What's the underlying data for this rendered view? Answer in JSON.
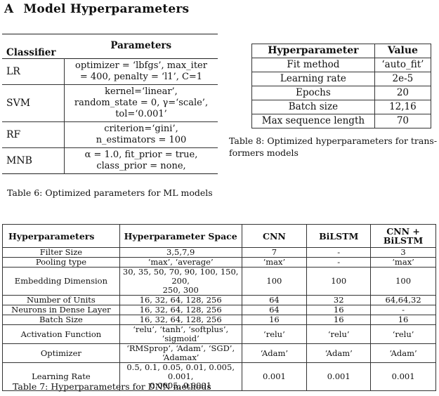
{
  "section": {
    "letter": "A",
    "title": "Model Hyperparameters"
  },
  "table6": {
    "headers": [
      "Classifier",
      "Parameters"
    ],
    "rows": [
      {
        "classifier": "LR",
        "params": [
          "optimizer = ‘lbfgs’, max_iter",
          "= 400, penalty = ‘l1’, C=1"
        ]
      },
      {
        "classifier": "SVM",
        "params": [
          "kernel=‘linear’,",
          "random_state = 0, γ=‘scale’,",
          "tol=‘0.001’"
        ]
      },
      {
        "classifier": "RF",
        "params": [
          "criterion=‘gini’,",
          "n_estimators = 100"
        ]
      },
      {
        "classifier": "MNB",
        "params": [
          "α = 1.0, fit_prior = true,",
          "class_prior = none,"
        ]
      }
    ],
    "caption": "Table 6: Optimized parameters for ML models"
  },
  "table8": {
    "headers": [
      "Hyperparameter",
      "Value"
    ],
    "rows": [
      [
        "Fit method",
        "‘auto_fit’"
      ],
      [
        "Learning rate",
        "2e-5"
      ],
      [
        "Epochs",
        "20"
      ],
      [
        "Batch size",
        "12,16"
      ],
      [
        "Max sequence length",
        "70"
      ]
    ],
    "caption_line1": "Table 8: Optimized hyperparameters for trans-",
    "caption_line2": "formers models"
  },
  "table7": {
    "headers": [
      "Hyperparameters",
      "Hyperparameter Space",
      "CNN",
      "BiLSTM",
      "CNN + BiLSTM"
    ],
    "rows": [
      {
        "name": "Filter Size",
        "space": [
          "3,5,7,9"
        ],
        "cnn": "7",
        "bilstm": "-",
        "combo": "3"
      },
      {
        "name": "Pooling type",
        "space": [
          "‘max’, ‘average’"
        ],
        "cnn": "‘max’",
        "bilstm": "-",
        "combo": "‘max’"
      },
      {
        "name": "Embedding Dimension",
        "space": [
          "30, 35, 50, 70, 90, 100, 150, 200,",
          "250, 300"
        ],
        "cnn": "100",
        "bilstm": "100",
        "combo": "100"
      },
      {
        "name": "Number of Units",
        "space": [
          "16, 32, 64, 128, 256"
        ],
        "cnn": "64",
        "bilstm": "32",
        "combo": "64,64,32"
      },
      {
        "name": "Neurons in Dense Layer",
        "space": [
          "16, 32, 64, 128, 256"
        ],
        "cnn": "64",
        "bilstm": "16",
        "combo": "-"
      },
      {
        "name": "Batch Size",
        "space": [
          "16, 32, 64, 128, 256"
        ],
        "cnn": "16",
        "bilstm": "16",
        "combo": "16"
      },
      {
        "name": "Activation Function",
        "space": [
          "‘relu’, ‘tanh’, ‘softplus’,",
          "‘sigmoid’"
        ],
        "cnn": "‘relu’",
        "bilstm": "‘relu’",
        "combo": "‘relu’"
      },
      {
        "name": "Optimizer",
        "space": [
          "‘RMSprop’, ‘Adam’, ‘SGD’,",
          "‘Adamax’"
        ],
        "cnn": "‘Adam’",
        "bilstm": "‘Adam’",
        "combo": "‘Adam’"
      },
      {
        "name": "Learning Rate",
        "space": [
          "0.5, 0.1, 0.05, 0.01, 0.005, 0.001,",
          "0.0005, 0.0001"
        ],
        "cnn": "0.001",
        "bilstm": "0.001",
        "combo": "0.001"
      }
    ],
    "caption": "Table 7: Hyperparameters for DNN methods"
  }
}
